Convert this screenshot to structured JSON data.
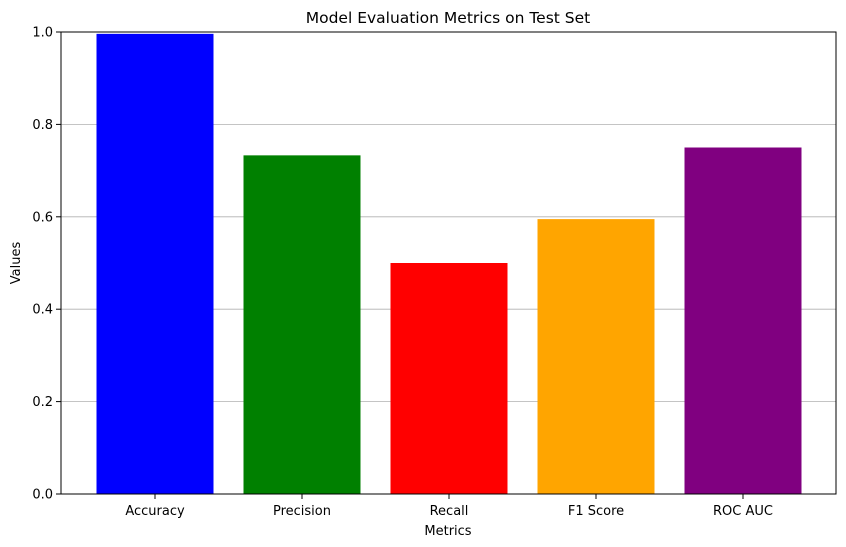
{
  "chart_data": {
    "type": "bar",
    "title": "Model Evaluation Metrics on Test Set",
    "xlabel": "Metrics",
    "ylabel": "Values",
    "categories": [
      "Accuracy",
      "Precision",
      "Recall",
      "F1 Score",
      "ROC AUC"
    ],
    "values": [
      0.996,
      0.733,
      0.5,
      0.595,
      0.75
    ],
    "colors": [
      "#0000ff",
      "#008000",
      "#ff0000",
      "#ffa500",
      "#800080"
    ],
    "ylim": [
      0,
      1
    ],
    "yticks": [
      "0.0",
      "0.2",
      "0.4",
      "0.6",
      "0.8",
      "1.0"
    ],
    "grid": "y-axis horizontal gridlines",
    "legend": "none"
  }
}
